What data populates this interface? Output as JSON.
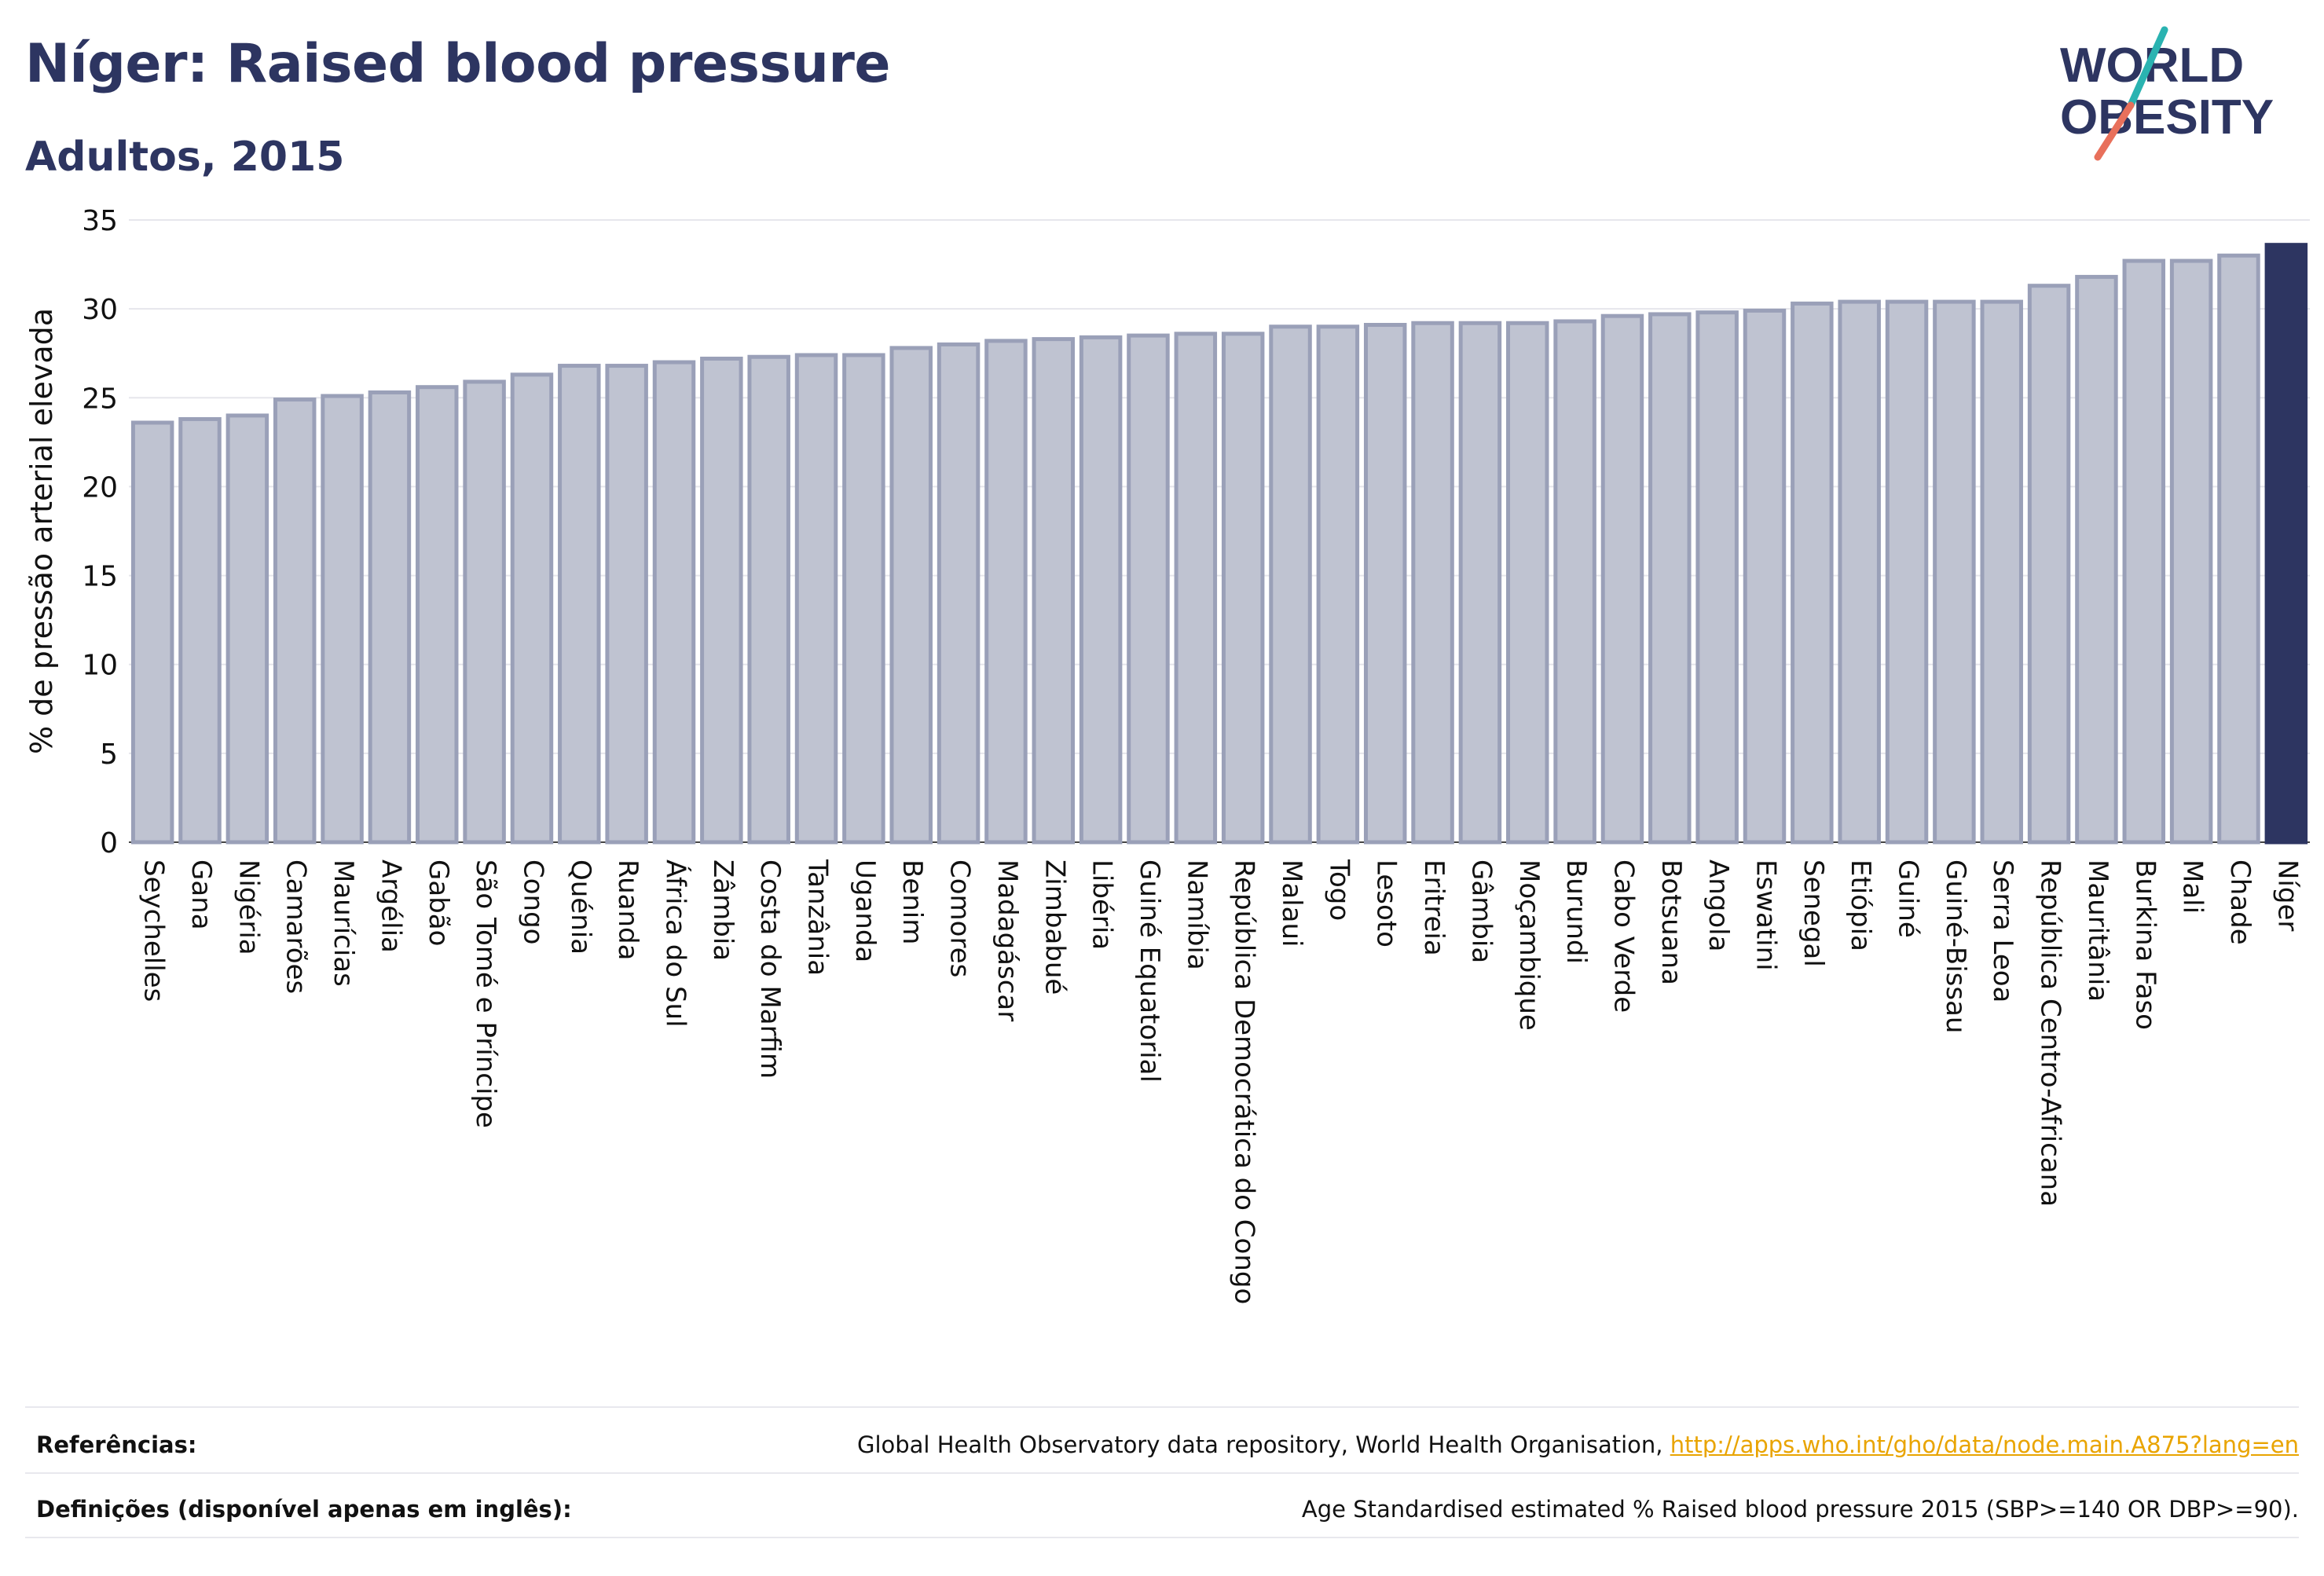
{
  "header": {
    "title": "Níger: Raised blood pressure",
    "subtitle": "Adultos, 2015"
  },
  "logo": {
    "line1": "WORLD",
    "line2": "OBESITY"
  },
  "colors": {
    "bar": "#bfc3d1",
    "bar_stroke": "#9aa0b8",
    "highlight": "#2d3561",
    "text": "#2d3561",
    "grid": "#e6e6ec",
    "logo_teal": "#2ab3b1",
    "logo_coral": "#e8705b",
    "link": "#e9a400"
  },
  "chart_data": {
    "type": "bar",
    "ylabel": "% de pressão arterial elevada",
    "ylim": [
      0,
      35
    ],
    "yticks": [
      0,
      5,
      10,
      15,
      20,
      25,
      30,
      35
    ],
    "grid": true,
    "highlight": "Níger",
    "categories": [
      "Seychelles",
      "Gana",
      "Nigéria",
      "Camarões",
      "Maurícias",
      "Argélia",
      "Gabão",
      "São Tomé e Príncipe",
      "Congo",
      "Quénia",
      "Ruanda",
      "África do Sul",
      "Zâmbia",
      "Costa do Marfim",
      "Tanzânia",
      "Uganda",
      "Benim",
      "Comores",
      "Madagáscar",
      "Zimbabué",
      "Libéria",
      "Guiné Equatorial",
      "Namíbia",
      "República Democrática do Congo",
      "Malaui",
      "Togo",
      "Lesoto",
      "Eritreia",
      "Gâmbia",
      "Moçambique",
      "Burundi",
      "Cabo Verde",
      "Botsuana",
      "Angola",
      "Eswatini",
      "Senegal",
      "Etiópia",
      "Guiné",
      "Guiné-Bissau",
      "Serra Leoa",
      "República Centro-Africana",
      "Mauritânia",
      "Burkina Faso",
      "Mali",
      "Chade",
      "Níger"
    ],
    "values": [
      23.6,
      23.8,
      24.0,
      24.9,
      25.1,
      25.3,
      25.6,
      25.9,
      26.3,
      26.8,
      26.8,
      27.0,
      27.2,
      27.3,
      27.4,
      27.4,
      27.8,
      28.0,
      28.2,
      28.3,
      28.4,
      28.5,
      28.6,
      28.6,
      29.0,
      29.0,
      29.1,
      29.2,
      29.2,
      29.2,
      29.3,
      29.6,
      29.7,
      29.8,
      29.9,
      30.3,
      30.4,
      30.4,
      30.4,
      30.4,
      31.3,
      31.8,
      32.7,
      32.7,
      33.0,
      33.6
    ]
  },
  "footer": {
    "references_label": "Referências:",
    "references_text": "Global Health Observatory data repository, World Health Organisation, ",
    "references_link": "http://apps.who.int/gho/data/node.main.A875?lang=en",
    "definitions_label": "Definições (disponível apenas em inglês):",
    "definitions_text": "Age Standardised estimated % Raised blood pressure 2015 (SBP>=140 OR DBP>=90)."
  }
}
